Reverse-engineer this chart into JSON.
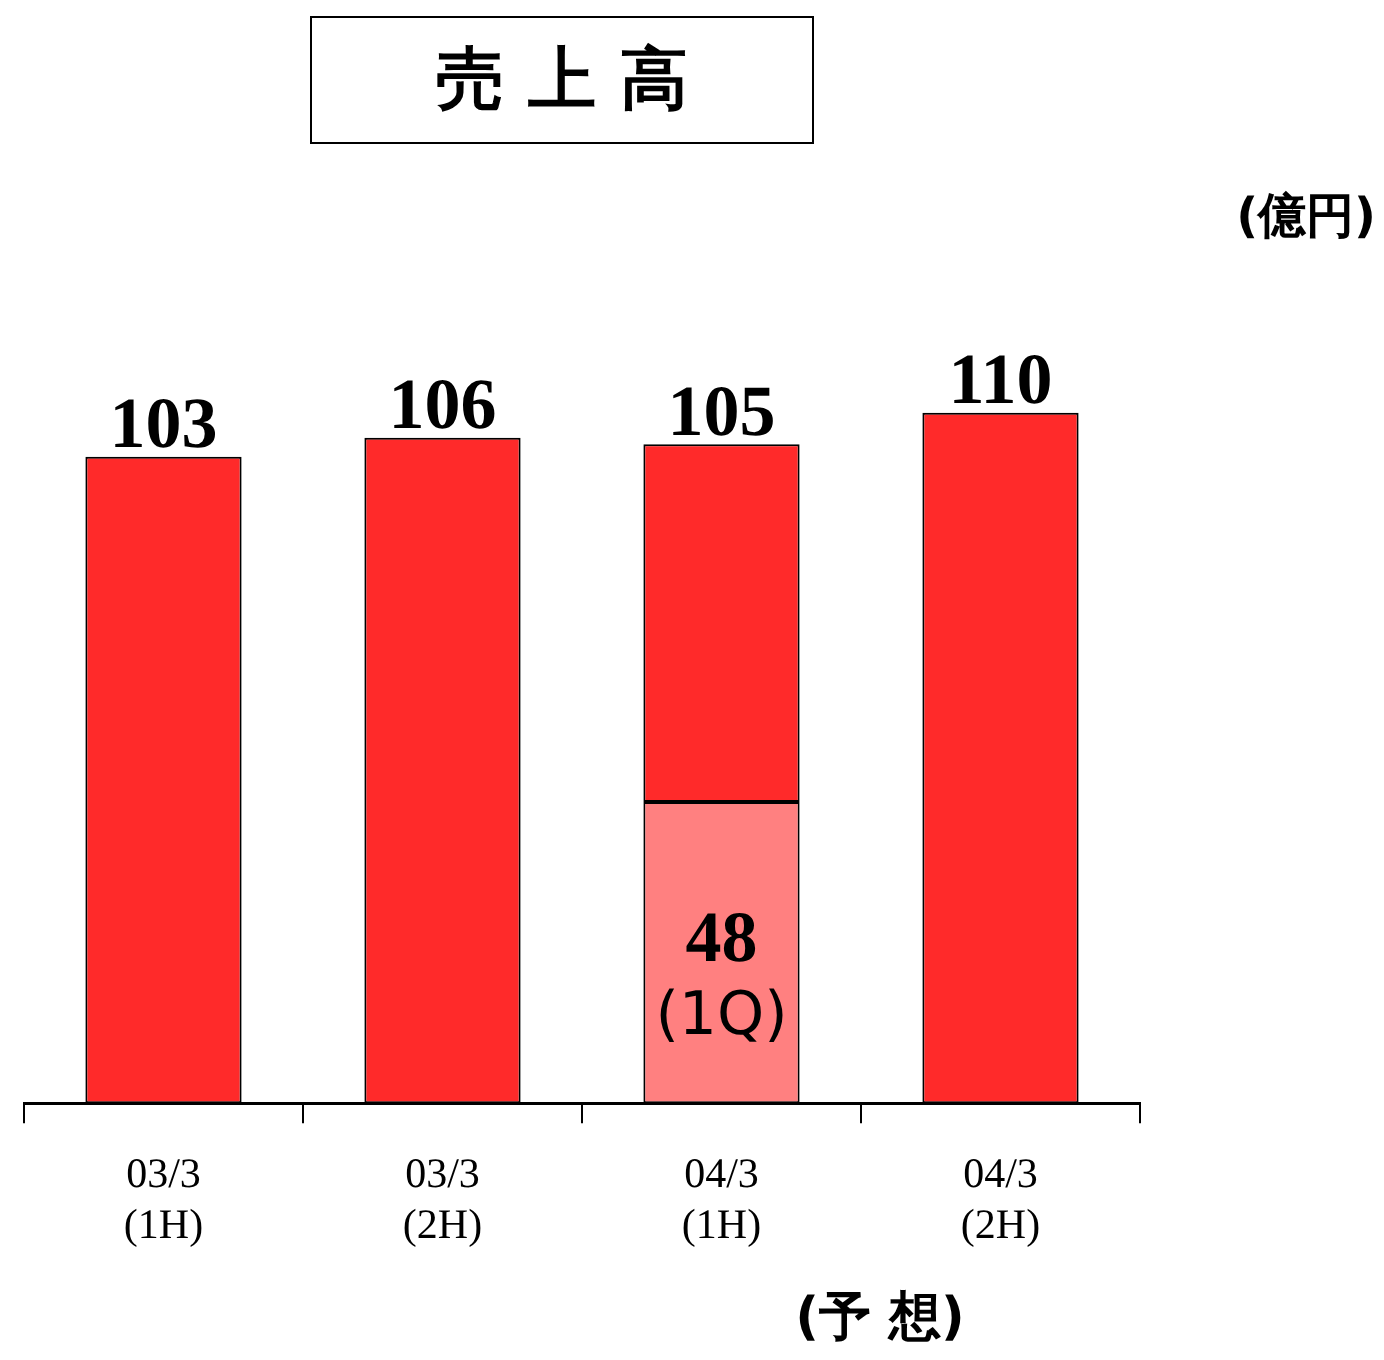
{
  "chart_data": {
    "type": "bar",
    "title": "売 上 高",
    "ylabel": "(億円)",
    "categories": [
      "03/3\n(1H)",
      "03/3\n(2H)",
      "04/3\n(1H)",
      "04/3\n(2H)"
    ],
    "stacked": true,
    "series": [
      {
        "name": "(1Q)",
        "color": "#ff8080",
        "values": [
          null,
          null,
          48,
          null
        ],
        "value_labels": [
          null,
          null,
          "48",
          null
        ]
      },
      {
        "color": "#ff2a2a",
        "values": [
          103,
          106,
          57,
          110
        ]
      }
    ],
    "totals": [
      "103",
      "106",
      "105",
      "110"
    ],
    "annotations": [
      "(予 想)"
    ],
    "legend": false
  }
}
